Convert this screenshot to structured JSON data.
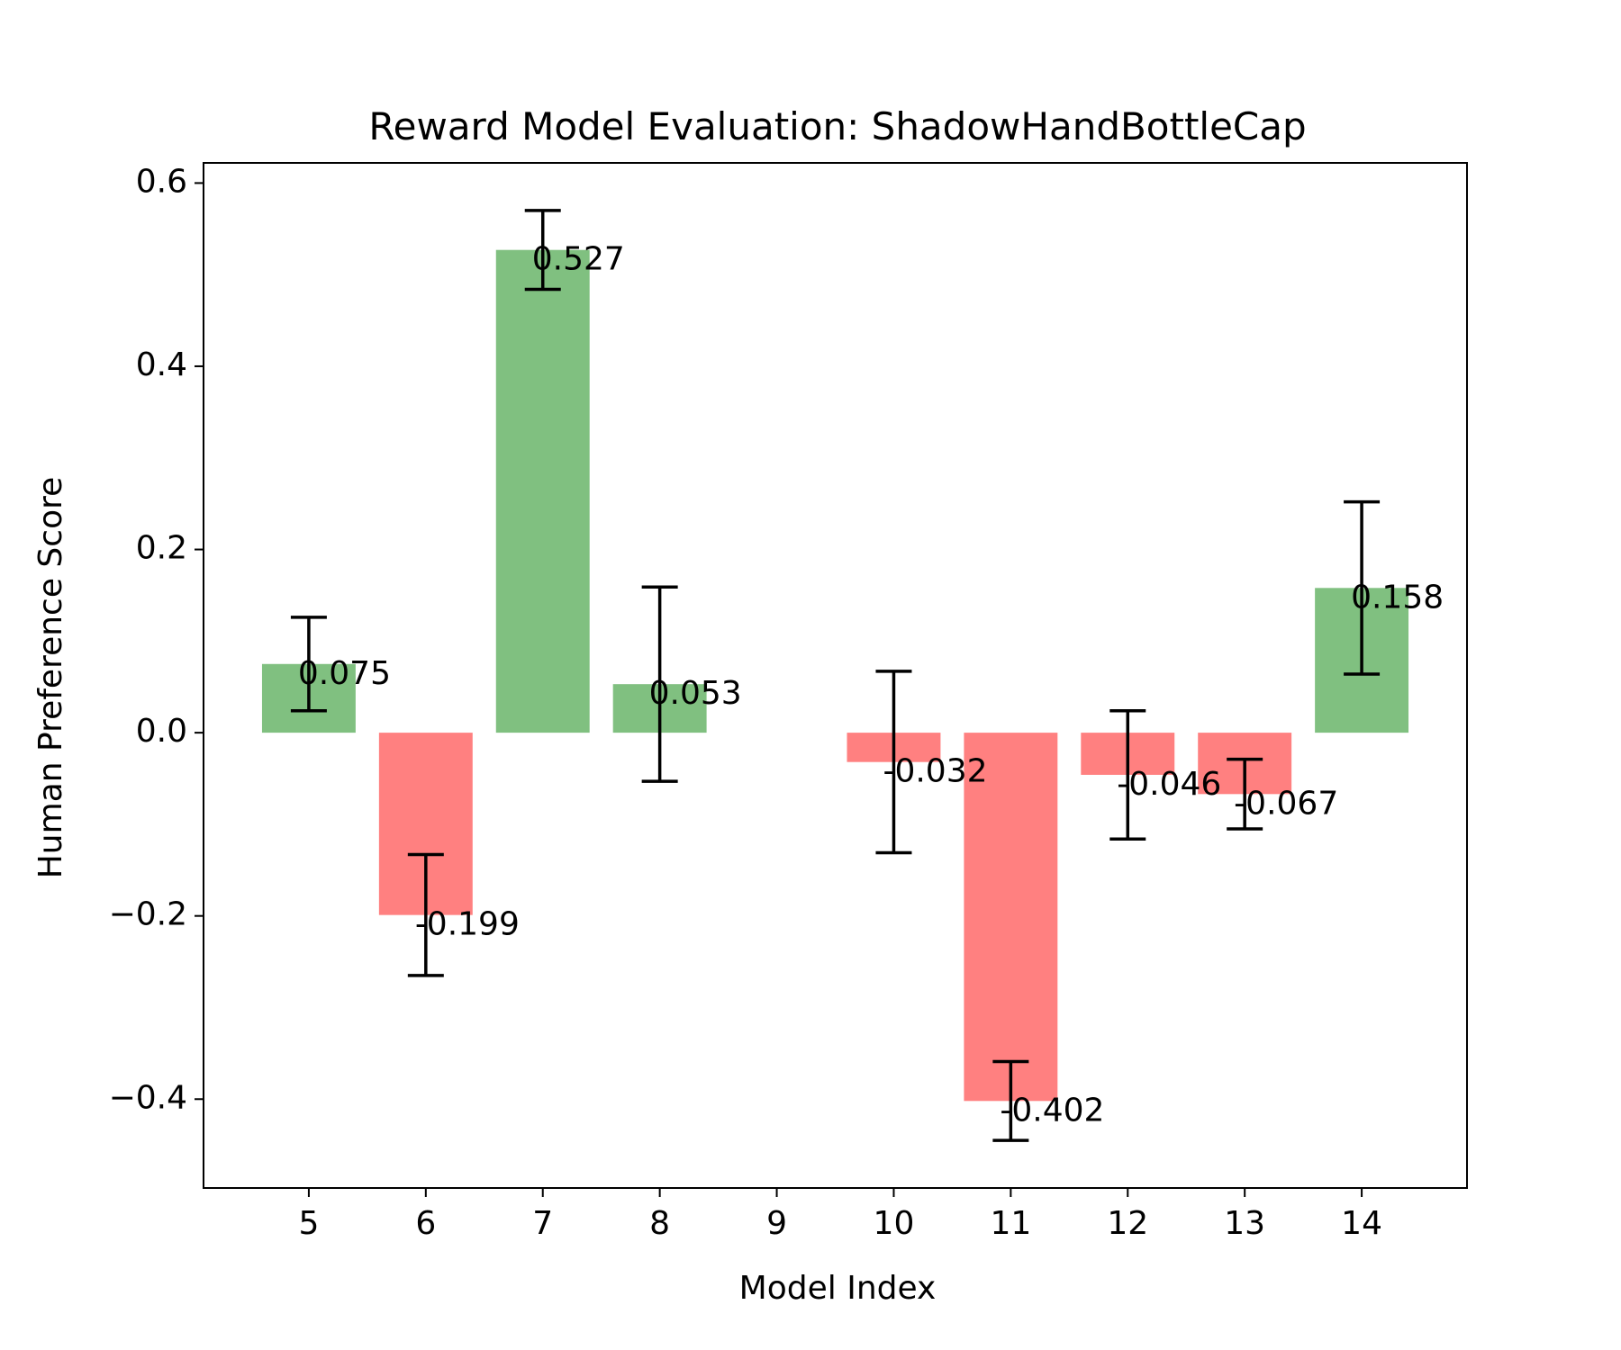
{
  "chart_data": {
    "type": "bar",
    "title": "Reward Model Evaluation: ShadowHandBottleCap",
    "xlabel": "Model Index",
    "ylabel": "Human Preference Score",
    "x_ticks": [
      "5",
      "6",
      "7",
      "8",
      "9",
      "10",
      "11",
      "12",
      "13",
      "14"
    ],
    "y_ticks": [
      {
        "value": 0.6,
        "label": "0.6"
      },
      {
        "value": 0.4,
        "label": "0.4"
      },
      {
        "value": 0.2,
        "label": "0.2"
      },
      {
        "value": 0.0,
        "label": "0.0"
      },
      {
        "value": -0.2,
        "label": "−0.2"
      },
      {
        "value": -0.4,
        "label": "−0.4"
      }
    ],
    "xlim": [
      4.1,
      14.9
    ],
    "ylim": [
      -0.497,
      0.622
    ],
    "grid": false,
    "colors": {
      "positive": "#80c080",
      "negative": "#ff8080",
      "error_bar": "#000000"
    },
    "bars": [
      {
        "x": 5,
        "value": 0.075,
        "error": 0.051,
        "label": "0.075"
      },
      {
        "x": 6,
        "value": -0.199,
        "error": 0.066,
        "label": "-0.199"
      },
      {
        "x": 7,
        "value": 0.527,
        "error": 0.043,
        "label": "0.527"
      },
      {
        "x": 8,
        "value": 0.053,
        "error": 0.106,
        "label": "0.053"
      },
      {
        "x": 10,
        "value": -0.032,
        "error": 0.099,
        "label": "-0.032"
      },
      {
        "x": 11,
        "value": -0.402,
        "error": 0.043,
        "label": "-0.402"
      },
      {
        "x": 12,
        "value": -0.046,
        "error": 0.07,
        "label": "-0.046"
      },
      {
        "x": 13,
        "value": -0.067,
        "error": 0.038,
        "label": "-0.067"
      },
      {
        "x": 14,
        "value": 0.158,
        "error": 0.094,
        "label": "0.158"
      }
    ]
  }
}
